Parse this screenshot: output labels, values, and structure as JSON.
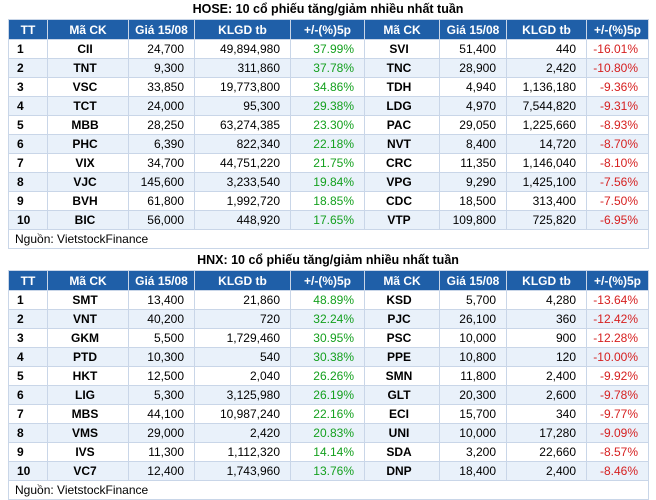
{
  "headers": [
    "TT",
    "Mã CK",
    "Giá 15/08",
    "KLGD tb",
    "+/-(%)5p",
    "Mã CK",
    "Giá 15/08",
    "KLGD tb",
    "+/-(%)5p"
  ],
  "hose": {
    "title": "HOSE: 10 cổ phiếu tăng/giảm nhiều nhất tuần",
    "source": "Nguồn: VietstockFinance",
    "rows": [
      [
        "1",
        "CII",
        "24,700",
        "49,894,980",
        "37.99%",
        "SVI",
        "51,400",
        "440",
        "-16.01%"
      ],
      [
        "2",
        "TNT",
        "9,300",
        "311,860",
        "37.78%",
        "TNC",
        "28,900",
        "2,420",
        "-10.80%"
      ],
      [
        "3",
        "VSC",
        "33,850",
        "19,773,800",
        "34.86%",
        "TDH",
        "4,940",
        "1,136,180",
        "-9.36%"
      ],
      [
        "4",
        "TCT",
        "24,000",
        "95,300",
        "29.38%",
        "LDG",
        "4,970",
        "7,544,820",
        "-9.31%"
      ],
      [
        "5",
        "MBB",
        "28,250",
        "63,274,385",
        "23.30%",
        "PAC",
        "29,050",
        "1,225,660",
        "-8.93%"
      ],
      [
        "6",
        "PHC",
        "6,390",
        "822,340",
        "22.18%",
        "NVT",
        "8,400",
        "14,720",
        "-8.70%"
      ],
      [
        "7",
        "VIX",
        "34,700",
        "44,751,220",
        "21.75%",
        "CRC",
        "11,350",
        "1,146,040",
        "-8.10%"
      ],
      [
        "8",
        "VJC",
        "145,600",
        "3,233,540",
        "19.84%",
        "VPG",
        "9,290",
        "1,425,100",
        "-7.56%"
      ],
      [
        "9",
        "BVH",
        "61,800",
        "1,992,720",
        "18.85%",
        "CDC",
        "18,500",
        "313,400",
        "-7.50%"
      ],
      [
        "10",
        "BIC",
        "56,000",
        "448,920",
        "17.65%",
        "VTP",
        "109,800",
        "725,820",
        "-6.95%"
      ]
    ]
  },
  "hnx": {
    "title": "HNX: 10 cổ phiếu tăng/giảm nhiều nhất tuần",
    "source": "Nguồn: VietstockFinance",
    "rows": [
      [
        "1",
        "SMT",
        "13,400",
        "21,860",
        "48.89%",
        "KSD",
        "5,700",
        "4,280",
        "-13.64%"
      ],
      [
        "2",
        "VNT",
        "40,200",
        "720",
        "32.24%",
        "PJC",
        "26,100",
        "360",
        "-12.42%"
      ],
      [
        "3",
        "GKM",
        "5,500",
        "1,729,460",
        "30.95%",
        "PSC",
        "10,000",
        "900",
        "-12.28%"
      ],
      [
        "4",
        "PTD",
        "10,300",
        "540",
        "30.38%",
        "PPE",
        "10,800",
        "120",
        "-10.00%"
      ],
      [
        "5",
        "HKT",
        "12,500",
        "2,040",
        "26.26%",
        "SMN",
        "11,800",
        "2,400",
        "-9.92%"
      ],
      [
        "6",
        "LIG",
        "5,300",
        "3,125,980",
        "26.19%",
        "GLT",
        "20,300",
        "2,600",
        "-9.78%"
      ],
      [
        "7",
        "MBS",
        "44,100",
        "10,987,240",
        "22.16%",
        "ECI",
        "15,700",
        "340",
        "-9.77%"
      ],
      [
        "8",
        "VMS",
        "29,000",
        "2,420",
        "20.83%",
        "UNI",
        "10,000",
        "17,280",
        "-9.09%"
      ],
      [
        "9",
        "IVS",
        "11,300",
        "1,112,320",
        "14.14%",
        "SDA",
        "3,200",
        "22,660",
        "-8.57%"
      ],
      [
        "10",
        "VC7",
        "12,400",
        "1,743,960",
        "13.76%",
        "DNP",
        "18,400",
        "2,400",
        "-8.46%"
      ]
    ]
  },
  "colors": {
    "header_bg": "#1f5fa8",
    "gain": "#14a01e",
    "loss": "#d62020",
    "row_alt": "#e9f1fa"
  }
}
